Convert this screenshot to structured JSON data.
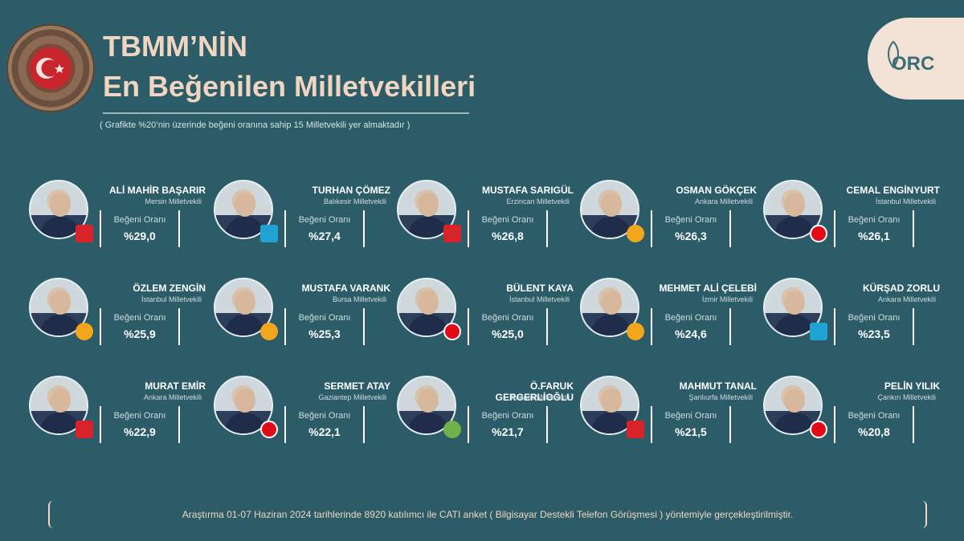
{
  "header": {
    "title_line1": "TBMM’NİN",
    "title_line2": "En Beğenilen Milletvekilleri",
    "subtitle": "( Grafikte %20’nin üzerinde beğeni oranına sahip 15 Milletvekili yer almaktadır )"
  },
  "logo": {
    "text": "ORC"
  },
  "colors": {
    "background": "#2b5c68",
    "title": "#f0d6c0",
    "accent": "#f3e3d6"
  },
  "rate_label": "Beğeni Oranı",
  "deputies": [
    {
      "name": "ALİ MAHİR BAŞARIR",
      "region": "Mersin Milletvekili",
      "rate": "%29,0",
      "party": "CHP"
    },
    {
      "name": "TURHAN ÇÖMEZ",
      "region": "Balıkesir Milletvekili",
      "rate": "%27,4",
      "party": "İYİ"
    },
    {
      "name": "MUSTAFA SARIGÜL",
      "region": "Erzincan Milletvekili",
      "rate": "%26,8",
      "party": "CHP"
    },
    {
      "name": "OSMAN GÖKÇEK",
      "region": "Ankara Milletvekili",
      "rate": "%26,3",
      "party": "AK"
    },
    {
      "name": "CEMAL ENGİNYURT",
      "region": "İstanbul Milletvekili",
      "rate": "%26,1",
      "party": "DP"
    },
    {
      "name": "ÖZLEM ZENGİN",
      "region": "İstanbul Milletvekili",
      "rate": "%25,9",
      "party": "AK"
    },
    {
      "name": "MUSTAFA VARANK",
      "region": "Bursa Milletvekili",
      "rate": "%25,3",
      "party": "AK"
    },
    {
      "name": "BÜLENT KAYA",
      "region": "İstanbul Milletvekili",
      "rate": "%25,0",
      "party": "SP"
    },
    {
      "name": "MEHMET ALİ ÇELEBİ",
      "region": "İzmir Milletvekili",
      "rate": "%24,6",
      "party": "AK"
    },
    {
      "name": "KÜRŞAD ZORLU",
      "region": "Ankara Milletvekili",
      "rate": "%23,5",
      "party": "İYİ"
    },
    {
      "name": "MURAT EMİR",
      "region": "Ankara Milletvekili",
      "rate": "%22,9",
      "party": "CHP"
    },
    {
      "name": "SERMET ATAY",
      "region": "Gaziantep Milletvekili",
      "rate": "%22,1",
      "party": "MHP"
    },
    {
      "name": "Ö.FARUK GERGERLİOĞLU",
      "region": "Kocaeli Milletvekili",
      "rate": "%21,7",
      "party": "DEM"
    },
    {
      "name": "MAHMUT TANAL",
      "region": "Şanlıurfa Milletvekili",
      "rate": "%21,5",
      "party": "CHP"
    },
    {
      "name": "PELİN YILIK",
      "region": "Çankırı Milletvekili",
      "rate": "%20,8",
      "party": "MHP"
    }
  ],
  "footer": "Araştırma 01-07 Haziran 2024 tarihlerinde 8920 katılımcı ile CATI anket ( Bilgisayar Destekli Telefon Görüşmesi ) yöntemiyle gerçekleştirilmiştir."
}
